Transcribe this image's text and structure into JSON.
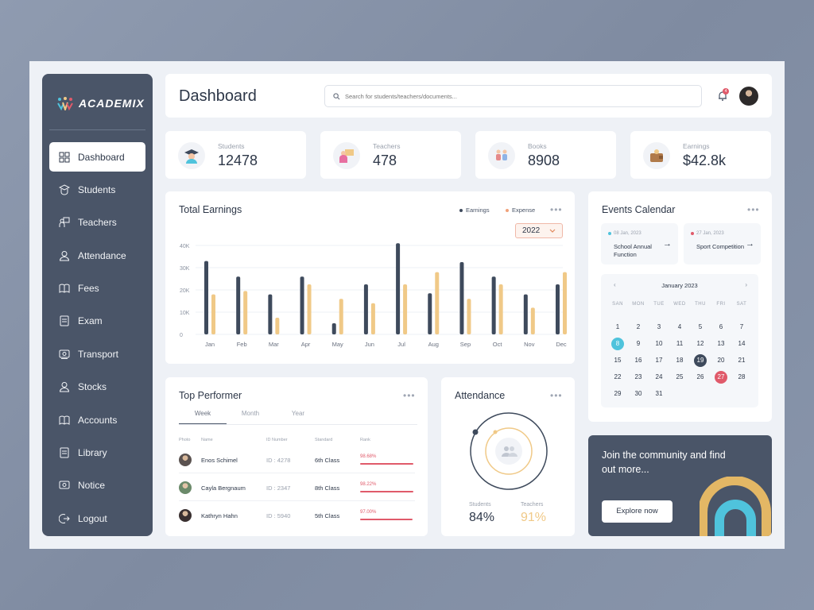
{
  "brand": {
    "name": "ACADEMIX"
  },
  "sidebar": {
    "items": [
      {
        "label": "Dashboard",
        "icon": "grid-icon"
      },
      {
        "label": "Students",
        "icon": "student-icon"
      },
      {
        "label": "Teachers",
        "icon": "teacher-icon"
      },
      {
        "label": "Attendance",
        "icon": "user-icon"
      },
      {
        "label": "Fees",
        "icon": "book-open-icon"
      },
      {
        "label": "Exam",
        "icon": "clipboard-icon"
      },
      {
        "label": "Transport",
        "icon": "bus-icon"
      },
      {
        "label": "Stocks",
        "icon": "user-icon"
      },
      {
        "label": "Accounts",
        "icon": "book-open-icon"
      },
      {
        "label": "Library",
        "icon": "clipboard-icon"
      },
      {
        "label": "Notice",
        "icon": "notice-icon"
      },
      {
        "label": "Logout",
        "icon": "logout-icon"
      }
    ],
    "active": "Dashboard"
  },
  "header": {
    "title": "Dashboard",
    "search_placeholder": "Search for students/teachers/documents...",
    "notification_count": "4"
  },
  "stats": [
    {
      "label": "Students",
      "value": "12478"
    },
    {
      "label": "Teachers",
      "value": "478"
    },
    {
      "label": "Books",
      "value": "8908"
    },
    {
      "label": "Earnings",
      "value": "$42.8k"
    }
  ],
  "earnings": {
    "title": "Total Earnings",
    "legend_earnings": "Earnings",
    "legend_expense": "Expense",
    "year": "2022"
  },
  "chart_data": {
    "type": "bar",
    "title": "Total Earnings",
    "categories": [
      "Jan",
      "Feb",
      "Mar",
      "Apr",
      "May",
      "Jun",
      "Jul",
      "Aug",
      "Sep",
      "Oct",
      "Nov",
      "Dec"
    ],
    "series": [
      {
        "name": "Earnings",
        "color": "#3e4a5c",
        "values": [
          33000,
          26000,
          18000,
          26000,
          5000,
          22500,
          41000,
          18500,
          32500,
          26000,
          18000,
          22500
        ]
      },
      {
        "name": "Expense",
        "color": "#f0c987",
        "values": [
          18000,
          19500,
          7500,
          22500,
          16000,
          14000,
          22500,
          28000,
          16000,
          22500,
          12000,
          28000
        ]
      }
    ],
    "yticks": [
      "0",
      "10K",
      "20K",
      "30K",
      "40K"
    ],
    "ylim": [
      0,
      40000
    ],
    "grid": true,
    "legend": "top-right"
  },
  "top_performer": {
    "title": "Top Performer",
    "tabs": [
      "Week",
      "Month",
      "Year"
    ],
    "columns": [
      "Photo",
      "Name",
      "ID Number",
      "Standard",
      "Rank"
    ],
    "rows": [
      {
        "name": "Enos Schimel",
        "id": "ID : 4278",
        "standard": "6th Class",
        "rank": "98.68%",
        "rank_value": 0.9868
      },
      {
        "name": "Cayla Bergnaum",
        "id": "ID : 2347",
        "standard": "8th Class",
        "rank": "98.22%",
        "rank_value": 0.9822
      },
      {
        "name": "Kathryn Hahn",
        "id": "ID : 5940",
        "standard": "5th Class",
        "rank": "97.00%",
        "rank_value": 0.97
      }
    ]
  },
  "attendance": {
    "title": "Attendance",
    "students_label": "Students",
    "students_value": "84%",
    "teachers_label": "Teachers",
    "teachers_value": "91%"
  },
  "events": {
    "title": "Events Calendar",
    "cards": [
      {
        "date": "08 Jan, 2023",
        "title": "School Annual Function",
        "dot": "#4fc3dc"
      },
      {
        "date": "27 Jan, 2023",
        "title": "Sport Competition",
        "dot": "#e05a6a"
      }
    ],
    "month": "January 2023",
    "weekdays": [
      "SAN",
      "MON",
      "TUE",
      "WED",
      "THU",
      "FRI",
      "SAT"
    ],
    "days": [
      "1",
      "2",
      "3",
      "4",
      "5",
      "6",
      "7",
      "8",
      "9",
      "10",
      "11",
      "12",
      "13",
      "14",
      "15",
      "16",
      "17",
      "18",
      "19",
      "20",
      "21",
      "22",
      "23",
      "24",
      "25",
      "26",
      "27",
      "28",
      "29",
      "30",
      "31"
    ],
    "today": "8",
    "selected": "19",
    "event_day": "27"
  },
  "community": {
    "text": "Join the community and find out more...",
    "button": "Explore now"
  }
}
